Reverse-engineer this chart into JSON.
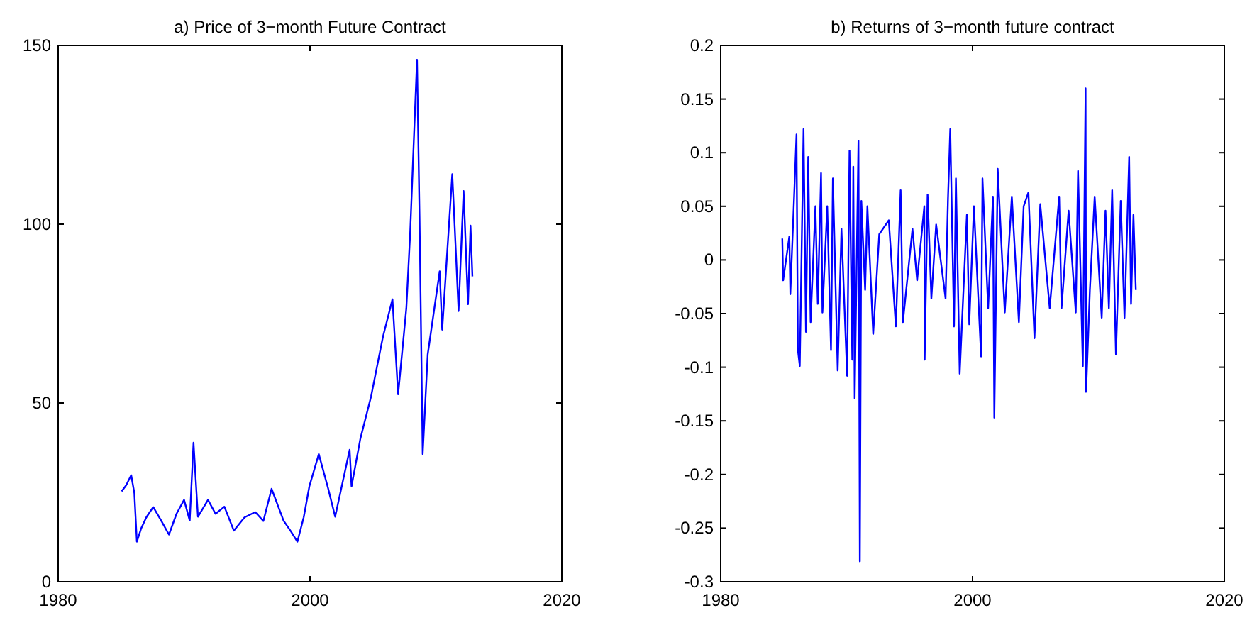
{
  "chart_data": [
    {
      "type": "line",
      "title": "a) Price of 3−month Future Contract",
      "color": "#0000ff",
      "xlim": [
        1980,
        2020
      ],
      "xticks": [
        1980,
        2000,
        2020
      ],
      "ylim": [
        0,
        150
      ],
      "yticks": [
        0,
        50,
        100,
        150
      ],
      "x": [
        1985.04,
        1985.4,
        1985.8,
        1986.05,
        1986.25,
        1986.6,
        1987.0,
        1987.55,
        1988.2,
        1988.8,
        1989.4,
        1990.0,
        1990.45,
        1990.75,
        1991.1,
        1991.9,
        1992.5,
        1993.2,
        1993.95,
        1994.8,
        1995.65,
        1996.3,
        1996.95,
        1997.9,
        1998.5,
        1999.0,
        1999.5,
        1999.95,
        2000.7,
        2001.45,
        2002.0,
        2002.6,
        2003.15,
        2003.3,
        2004.0,
        2004.85,
        2005.8,
        2006.55,
        2007.0,
        2007.65,
        2007.95,
        2008.5,
        2008.7,
        2008.95,
        2009.35,
        2010.3,
        2010.5,
        2011.3,
        2011.8,
        2012.2,
        2012.55,
        2012.75,
        2012.9
      ],
      "values": [
        25.3,
        27,
        29.8,
        24.8,
        11.2,
        15,
        18,
        20.9,
        17,
        13.2,
        19,
        22.9,
        17.1,
        38.9,
        18.2,
        22.9,
        19,
        21,
        14.3,
        18,
        19.5,
        17,
        26,
        17.1,
        14,
        11.2,
        18,
        26.7,
        35.7,
        26,
        18.2,
        28,
        36.9,
        26.7,
        40,
        51.8,
        68.6,
        79,
        52.4,
        76.4,
        97,
        146,
        102,
        35.7,
        63.6,
        86.8,
        70.5,
        114,
        75.7,
        109.3,
        77.6,
        99.6,
        85.4
      ]
    },
    {
      "type": "line",
      "title": "b) Returns of 3−month future contract",
      "color": "#0000ff",
      "xlim": [
        1980,
        2020
      ],
      "xticks": [
        1980,
        2000,
        2020
      ],
      "ylim": [
        -0.3,
        0.2
      ],
      "yticks": [
        -0.3,
        -0.25,
        -0.2,
        -0.15,
        -0.1,
        -0.05,
        0,
        0.05,
        0.1,
        0.15,
        0.2
      ],
      "x": [
        1984.89,
        1984.96,
        1985.45,
        1985.53,
        1986.02,
        1986.13,
        1986.28,
        1986.58,
        1986.77,
        1986.95,
        1987.14,
        1987.52,
        1987.71,
        1987.97,
        1988.08,
        1988.46,
        1988.76,
        1988.91,
        1989.29,
        1989.59,
        1990.04,
        1990.23,
        1990.45,
        1990.53,
        1990.64,
        1990.94,
        1991.05,
        1991.17,
        1991.47,
        1991.65,
        1992.11,
        1992.59,
        1993.35,
        1993.91,
        1994.29,
        1994.47,
        1995.23,
        1995.6,
        1996.17,
        1996.2,
        1996.43,
        1996.73,
        1997.11,
        1997.86,
        1998.05,
        1998.23,
        1998.53,
        1998.68,
        1998.98,
        1999.55,
        1999.74,
        2000.11,
        2000.68,
        2000.79,
        2001.24,
        2001.62,
        2001.73,
        2002.0,
        2002.56,
        2003.12,
        2003.68,
        2004.06,
        2004.44,
        2004.92,
        2005.38,
        2006.13,
        2006.88,
        2007.07,
        2007.63,
        2008.2,
        2008.38,
        2008.76,
        2008.98,
        2009.02,
        2009.32,
        2009.7,
        2010.26,
        2010.56,
        2010.83,
        2011.09,
        2011.39,
        2011.77,
        2012.07,
        2012.44,
        2012.59,
        2012.78,
        2012.97
      ],
      "values": [
        0.02,
        -0.019,
        0.022,
        -0.032,
        0.117,
        -0.084,
        -0.099,
        0.122,
        -0.067,
        0.096,
        -0.058,
        0.05,
        -0.041,
        0.081,
        -0.049,
        0.05,
        -0.084,
        0.076,
        -0.103,
        0.029,
        -0.108,
        0.102,
        -0.093,
        0.087,
        -0.129,
        0.111,
        -0.281,
        0.055,
        -0.028,
        0.05,
        -0.069,
        0.024,
        0.037,
        -0.062,
        0.065,
        -0.058,
        0.029,
        -0.019,
        0.05,
        -0.093,
        0.061,
        -0.036,
        0.033,
        -0.036,
        0.057,
        0.122,
        -0.062,
        0.076,
        -0.106,
        0.042,
        -0.06,
        0.05,
        -0.09,
        0.076,
        -0.045,
        0.059,
        -0.147,
        0.085,
        -0.049,
        0.059,
        -0.058,
        0.05,
        0.063,
        -0.073,
        0.052,
        -0.045,
        0.059,
        -0.045,
        0.046,
        -0.049,
        0.083,
        -0.099,
        0.16,
        -0.123,
        -0.028,
        0.059,
        -0.054,
        0.046,
        -0.045,
        0.065,
        -0.088,
        0.055,
        -0.054,
        0.096,
        -0.041,
        0.042,
        -0.028
      ]
    }
  ]
}
